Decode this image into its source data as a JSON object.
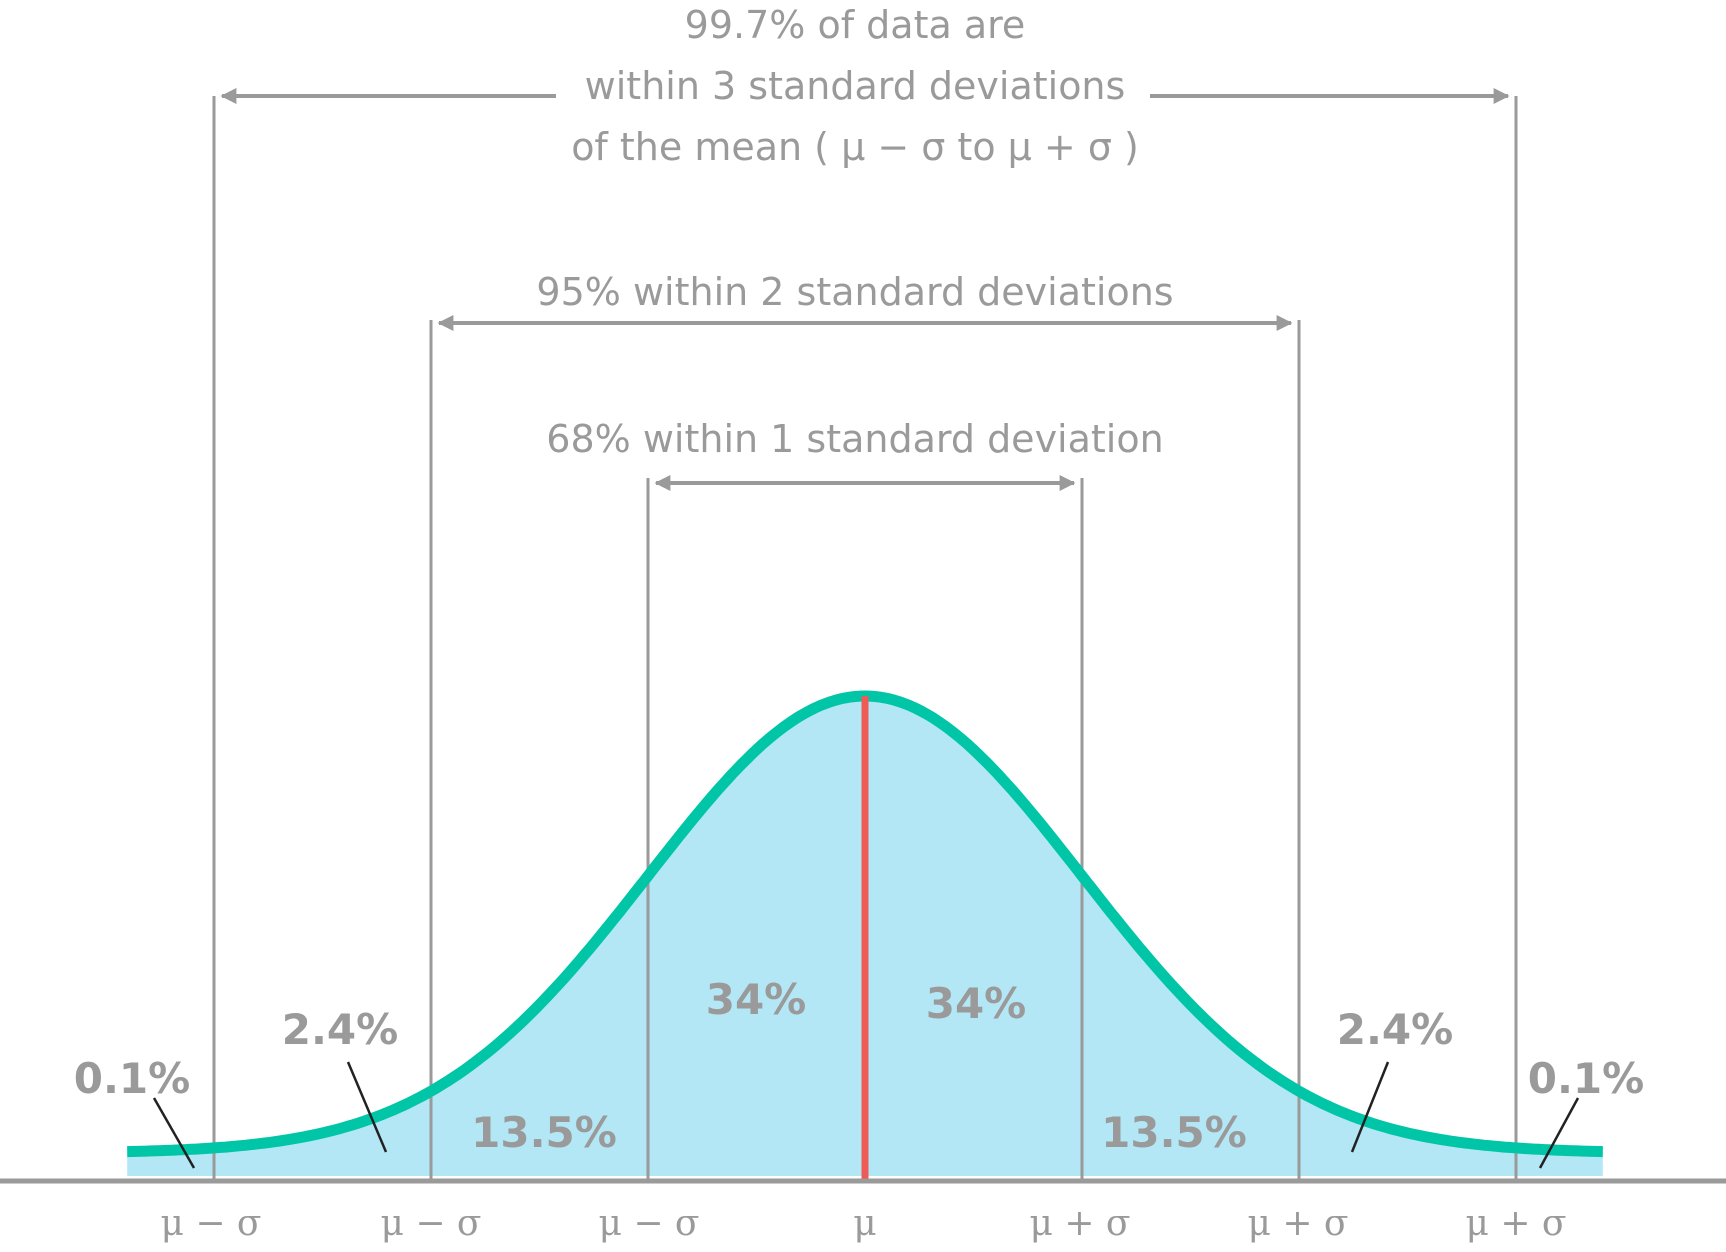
{
  "colors": {
    "curve": "#00c6a7",
    "fill": "#b3e7f6",
    "mean_line": "#ee5a55",
    "guide": "#9a9a9a",
    "text": "#9a9a9a",
    "leader": "#222222"
  },
  "chart_data": {
    "type": "area",
    "distribution": "normal",
    "x_range_sigma": [
      -3.4,
      3.4
    ],
    "tick_labels": [
      "μ − σ",
      "μ − σ",
      "μ − σ",
      "μ",
      "μ + σ",
      "μ + σ",
      "μ + σ"
    ],
    "tick_positions_sigma": [
      -3,
      -2,
      -1,
      0,
      1,
      2,
      3
    ],
    "bands": [
      {
        "lines": [
          "99.7% of data are",
          "within 3 standard deviations",
          "of the mean ( μ − σ to μ + σ )"
        ],
        "from_sigma": -3,
        "to_sigma": 3
      },
      {
        "lines": [
          "95% within 2 standard deviations"
        ],
        "from_sigma": -2,
        "to_sigma": 2
      },
      {
        "lines": [
          "68% within 1 standard deviation"
        ],
        "from_sigma": -1,
        "to_sigma": 1
      }
    ],
    "segments": [
      {
        "label": "0.1%",
        "from_sigma": -3.4,
        "to_sigma": -3,
        "value": 0.1
      },
      {
        "label": "2.4%",
        "from_sigma": -3,
        "to_sigma": -2,
        "value": 2.4
      },
      {
        "label": "13.5%",
        "from_sigma": -2,
        "to_sigma": -1,
        "value": 13.5
      },
      {
        "label": "34%",
        "from_sigma": -1,
        "to_sigma": 0,
        "value": 34
      },
      {
        "label": "34%",
        "from_sigma": 0,
        "to_sigma": 1,
        "value": 34
      },
      {
        "label": "13.5%",
        "from_sigma": 1,
        "to_sigma": 2,
        "value": 13.5
      },
      {
        "label": "2.4%",
        "from_sigma": 2,
        "to_sigma": 3,
        "value": 2.4
      },
      {
        "label": "0.1%",
        "from_sigma": 3,
        "to_sigma": 3.4,
        "value": 0.1
      }
    ]
  }
}
